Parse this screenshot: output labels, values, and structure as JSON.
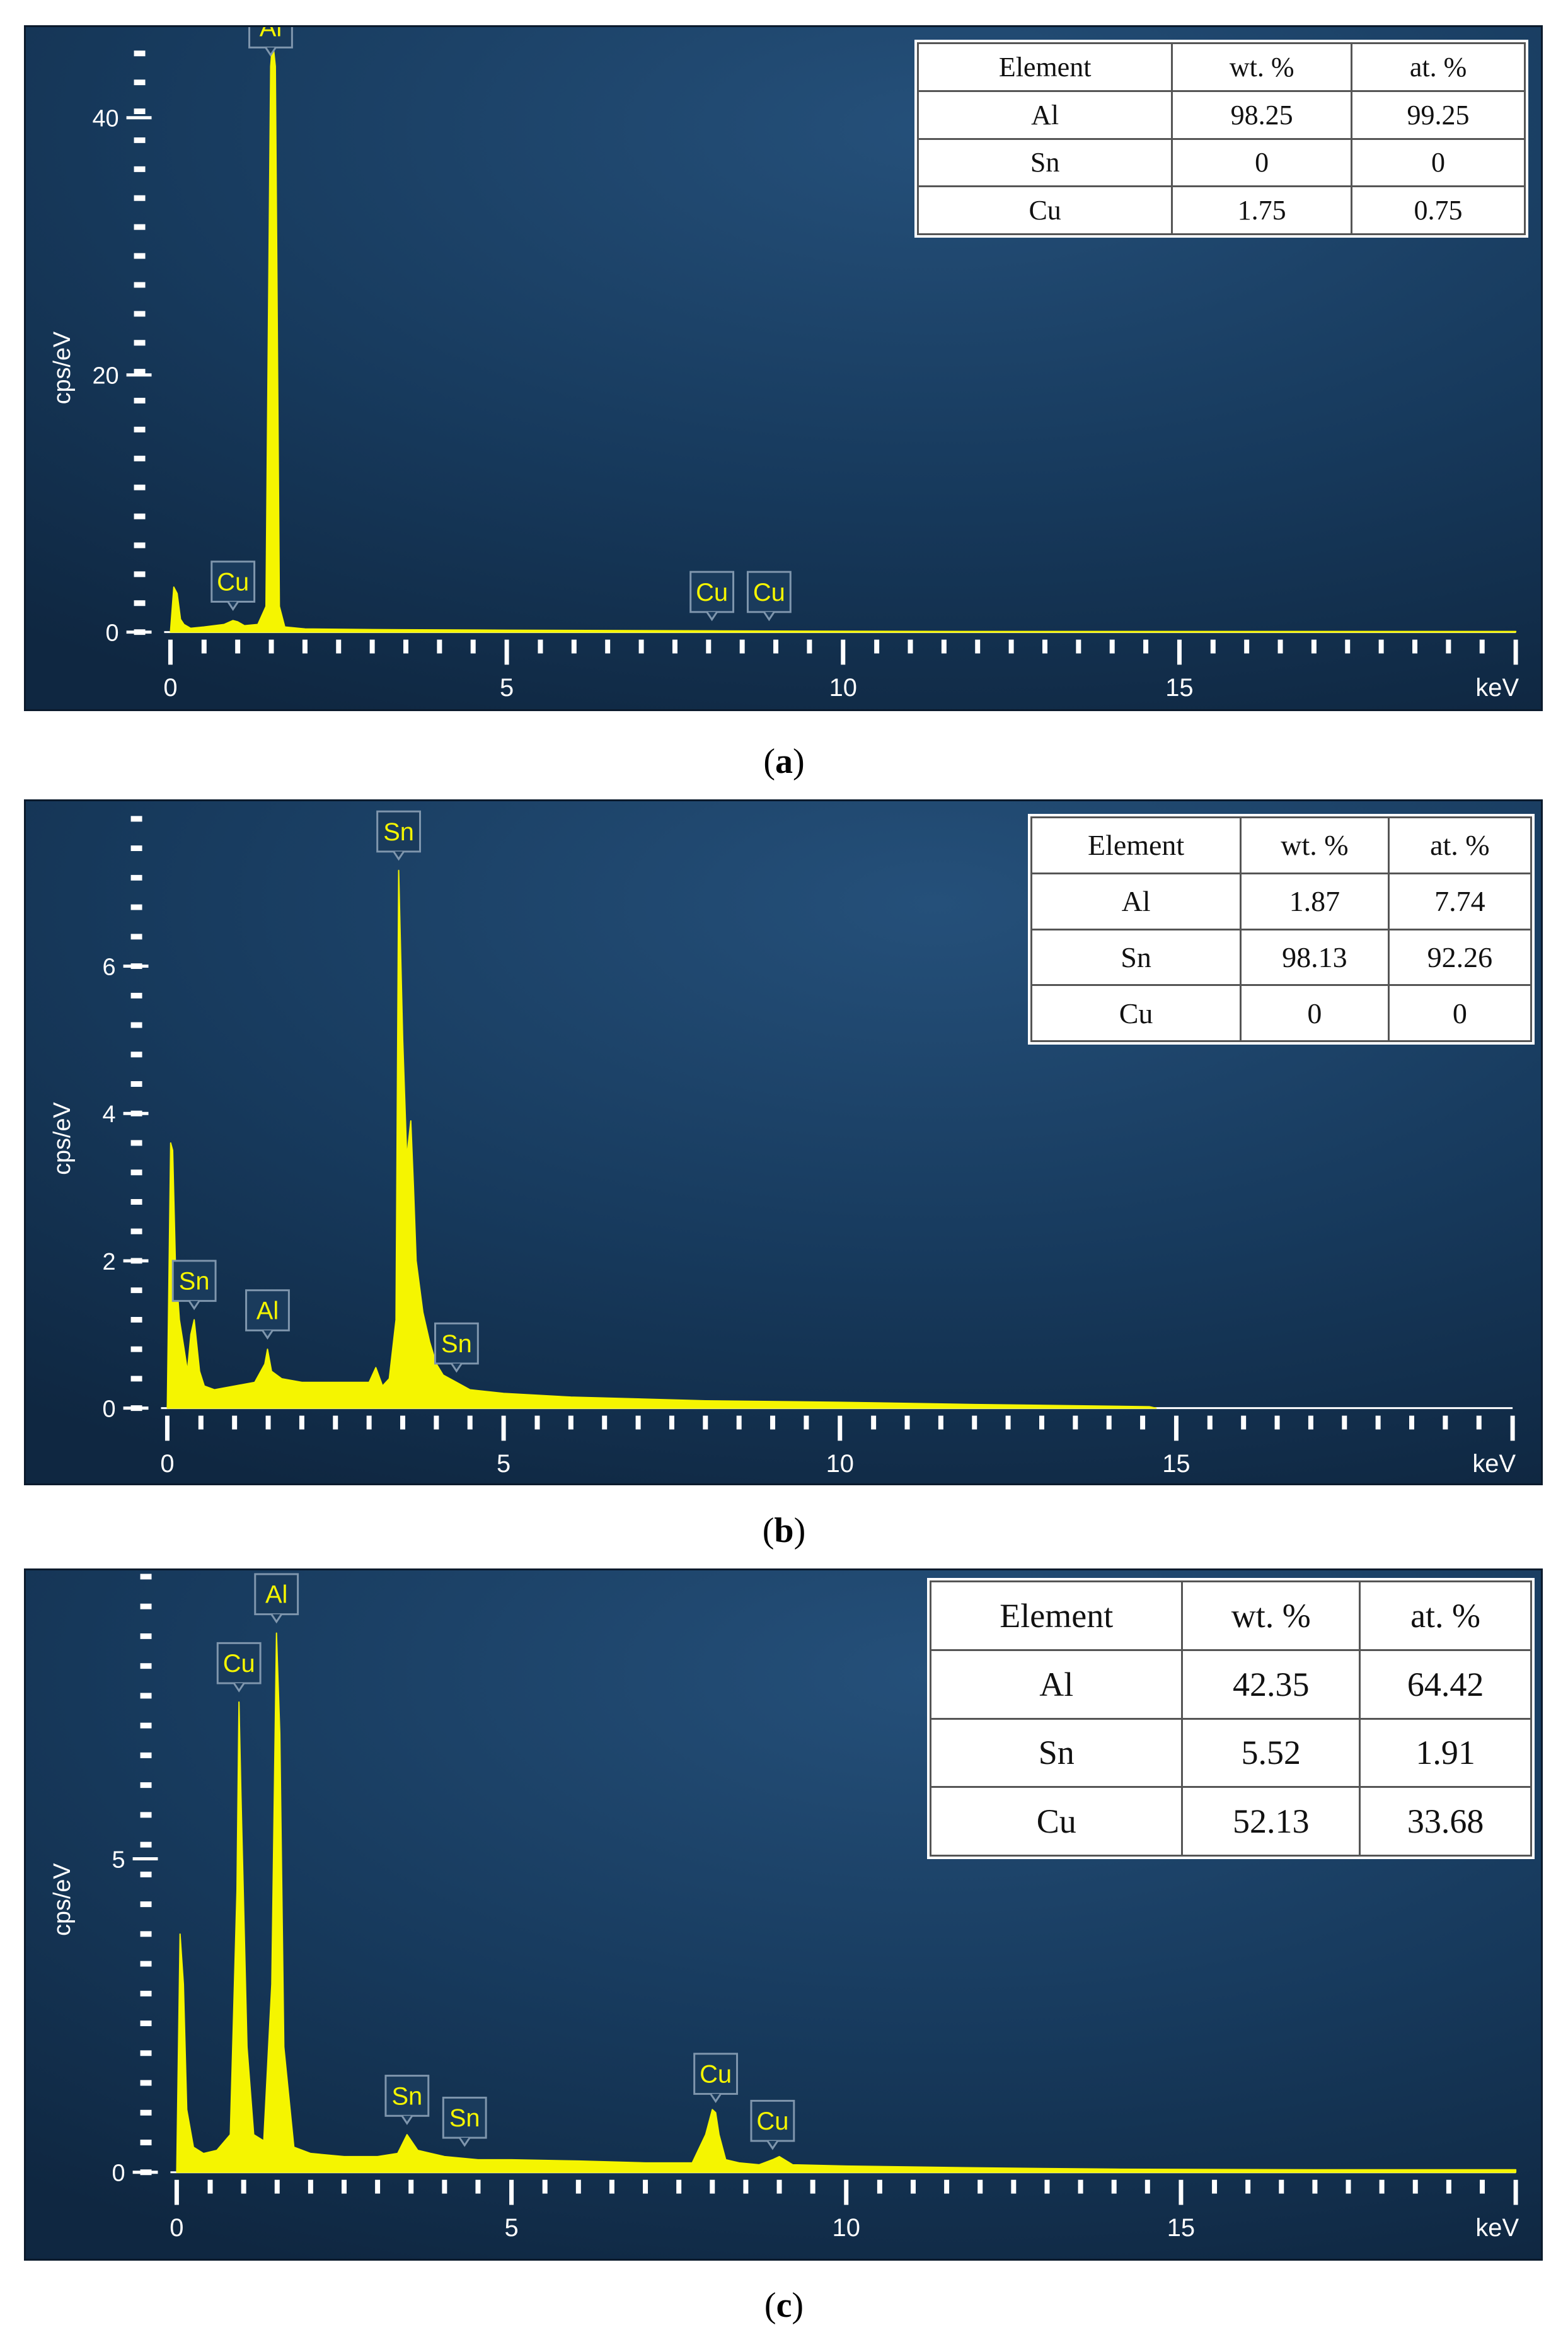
{
  "captions": {
    "a": "a",
    "b": "b",
    "c": "c"
  },
  "chart_data": [
    {
      "type": "line",
      "panel": "a",
      "ylabel": "cps/eV",
      "xunit": "keV",
      "xlim": [
        0,
        20
      ],
      "ylim": [
        0,
        45
      ],
      "xticks": [
        0,
        5,
        10,
        15
      ],
      "yticks": [
        0,
        20,
        40
      ],
      "series": [
        {
          "x": [
            0,
            0.05,
            0.1,
            0.15,
            0.2,
            0.3,
            0.5,
            0.8,
            0.93,
            1.0,
            1.1,
            1.3,
            1.42,
            1.49,
            1.52,
            1.56,
            1.62,
            1.7,
            2,
            3,
            5,
            8,
            8.05,
            9,
            12,
            15,
            20
          ],
          "y": [
            0,
            3.5,
            3.0,
            1.0,
            0.6,
            0.3,
            0.4,
            0.6,
            0.9,
            0.8,
            0.5,
            0.6,
            2,
            44,
            46,
            44,
            2,
            0.4,
            0.25,
            0.2,
            0.15,
            0.1,
            0.1,
            0.08,
            0.05,
            0.05,
            0.05
          ]
        }
      ],
      "peak_labels": [
        {
          "text": "Al",
          "x": 1.49,
          "y": 44
        },
        {
          "text": "Cu",
          "x": 0.93,
          "y": 0.9
        },
        {
          "text": "Cu",
          "x": 8.05,
          "y": 0.1
        },
        {
          "text": "Cu",
          "x": 8.9,
          "y": 0.1
        }
      ],
      "table": {
        "headers": [
          "Element",
          "wt. %",
          "at. %"
        ],
        "rows": [
          [
            "Al",
            "98.25",
            "99.25"
          ],
          [
            "Sn",
            "0",
            "0"
          ],
          [
            "Cu",
            "1.75",
            "0.75"
          ]
        ]
      }
    },
    {
      "type": "line",
      "panel": "b",
      "ylabel": "cps/eV",
      "xunit": "keV",
      "xlim": [
        0,
        20
      ],
      "ylim": [
        0,
        8
      ],
      "xticks": [
        0,
        5,
        10,
        15
      ],
      "yticks": [
        0,
        2,
        4,
        6
      ],
      "series": [
        {
          "x": [
            0,
            0.05,
            0.08,
            0.12,
            0.18,
            0.25,
            0.3,
            0.35,
            0.4,
            0.48,
            0.55,
            0.7,
            1.0,
            1.3,
            1.45,
            1.49,
            1.55,
            1.7,
            2.0,
            2.5,
            3.0,
            3.1,
            3.2,
            3.3,
            3.4,
            3.44,
            3.5,
            3.56,
            3.62,
            3.66,
            3.7,
            3.8,
            3.9,
            4.0,
            4.1,
            4.3,
            4.5,
            5,
            6,
            8,
            10,
            12,
            14.6,
            14.7
          ],
          "y": [
            0,
            3.6,
            3.5,
            2.0,
            1.2,
            0.8,
            0.5,
            1.0,
            1.2,
            0.5,
            0.3,
            0.25,
            0.3,
            0.35,
            0.6,
            0.8,
            0.5,
            0.4,
            0.35,
            0.35,
            0.35,
            0.55,
            0.3,
            0.4,
            1.2,
            7.3,
            5.0,
            3.4,
            3.9,
            3.0,
            2.0,
            1.3,
            0.9,
            0.6,
            0.45,
            0.35,
            0.25,
            0.2,
            0.15,
            0.1,
            0.08,
            0.05,
            0.02,
            0
          ]
        }
      ],
      "peak_labels": [
        {
          "text": "Sn",
          "x": 3.44,
          "y": 7.3
        },
        {
          "text": "Sn",
          "x": 0.4,
          "y": 1.2
        },
        {
          "text": "Al",
          "x": 1.49,
          "y": 0.8
        },
        {
          "text": "Sn",
          "x": 4.3,
          "y": 0.35
        }
      ],
      "table": {
        "headers": [
          "Element",
          "wt. %",
          "at. %"
        ],
        "rows": [
          [
            "Al",
            "1.87",
            "7.74"
          ],
          [
            "Sn",
            "98.13",
            "92.26"
          ],
          [
            "Cu",
            "0",
            "0"
          ]
        ]
      }
    },
    {
      "type": "line",
      "panel": "c",
      "ylabel": "cps/eV",
      "xunit": "keV",
      "xlim": [
        0,
        20
      ],
      "ylim": [
        0,
        9.5
      ],
      "xticks": [
        0,
        5,
        10,
        15
      ],
      "yticks": [
        0,
        5
      ],
      "series": [
        {
          "x": [
            0,
            0.05,
            0.1,
            0.15,
            0.25,
            0.4,
            0.6,
            0.8,
            0.9,
            0.93,
            0.96,
            1.05,
            1.15,
            1.3,
            1.42,
            1.49,
            1.54,
            1.6,
            1.75,
            2.0,
            2.5,
            3.0,
            3.3,
            3.44,
            3.6,
            3.8,
            4.0,
            4.5,
            5.0,
            6.0,
            7.0,
            7.7,
            7.9,
            8.0,
            8.05,
            8.1,
            8.2,
            8.4,
            8.7,
            8.9,
            9.0,
            9.2,
            10,
            12,
            14,
            17,
            20
          ],
          "y": [
            0,
            3.8,
            3.0,
            1.0,
            0.4,
            0.3,
            0.35,
            0.6,
            4.5,
            7.5,
            6.0,
            2.0,
            0.6,
            0.5,
            3.0,
            8.6,
            7.0,
            2.0,
            0.4,
            0.3,
            0.25,
            0.25,
            0.3,
            0.6,
            0.35,
            0.3,
            0.25,
            0.2,
            0.2,
            0.18,
            0.15,
            0.15,
            0.6,
            1.0,
            0.95,
            0.6,
            0.2,
            0.15,
            0.12,
            0.2,
            0.25,
            0.12,
            0.1,
            0.07,
            0.05,
            0.04,
            0.04
          ]
        }
      ],
      "peak_labels": [
        {
          "text": "Al",
          "x": 1.49,
          "y": 8.6
        },
        {
          "text": "Cu",
          "x": 0.93,
          "y": 7.5
        },
        {
          "text": "Sn",
          "x": 3.44,
          "y": 0.6
        },
        {
          "text": "Sn",
          "x": 4.3,
          "y": 0.25
        },
        {
          "text": "Cu",
          "x": 8.05,
          "y": 0.95
        },
        {
          "text": "Cu",
          "x": 8.9,
          "y": 0.2
        }
      ],
      "table": {
        "headers": [
          "Element",
          "wt. %",
          "at. %"
        ],
        "rows": [
          [
            "Al",
            "42.35",
            "64.42"
          ],
          [
            "Sn",
            "5.52",
            "1.91"
          ],
          [
            "Cu",
            "52.13",
            "33.68"
          ]
        ]
      }
    }
  ]
}
